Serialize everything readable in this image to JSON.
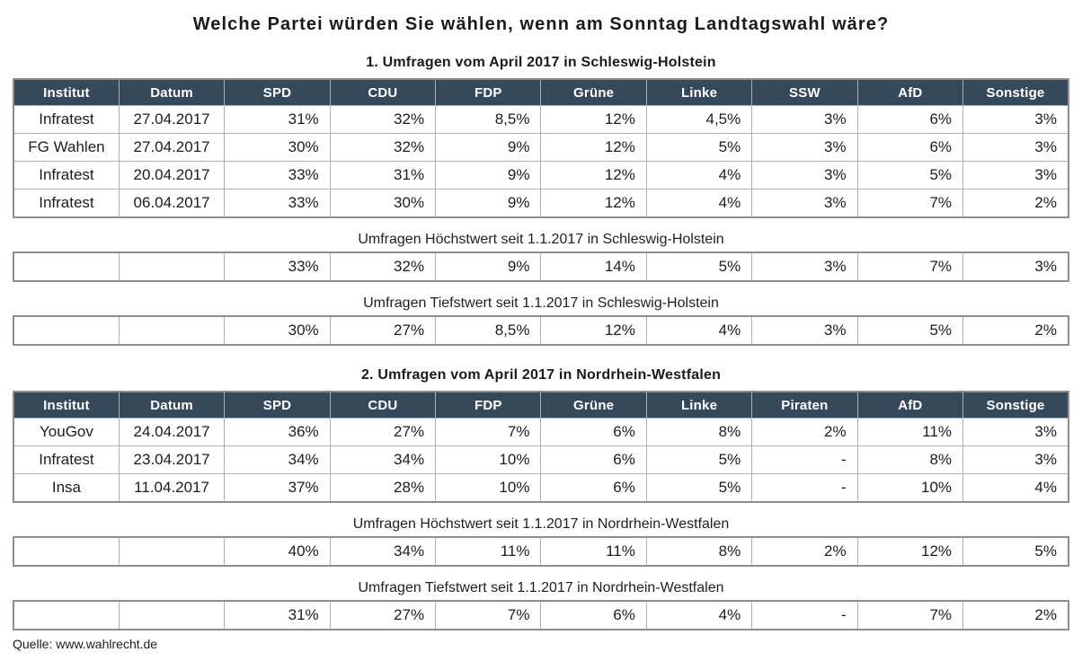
{
  "page": {
    "title": "Welche Partei würden Sie wählen, wenn am Sonntag Landtagswahl wäre?",
    "source": "Quelle: www.wahlrecht.de",
    "colors": {
      "header_bg": "#36495A",
      "header_text": "#ffffff",
      "body_text": "#1d1d1d",
      "grid_border": "#b0b0b0"
    }
  },
  "sections": [
    {
      "title": "1. Umfragen vom April 2017 in Schleswig-Holstein",
      "columns": [
        "Institut",
        "Datum",
        "SPD",
        "CDU",
        "FDP",
        "Grüne",
        "Linke",
        "SSW",
        "AfD",
        "Sonstige"
      ],
      "rows": [
        [
          "Infratest",
          "27.04.2017",
          "31%",
          "32%",
          "8,5%",
          "12%",
          "4,5%",
          "3%",
          "6%",
          "3%"
        ],
        [
          "FG Wahlen",
          "27.04.2017",
          "30%",
          "32%",
          "9%",
          "12%",
          "5%",
          "3%",
          "6%",
          "3%"
        ],
        [
          "Infratest",
          "20.04.2017",
          "33%",
          "31%",
          "9%",
          "12%",
          "4%",
          "3%",
          "5%",
          "3%"
        ],
        [
          "Infratest",
          "06.04.2017",
          "33%",
          "30%",
          "9%",
          "12%",
          "4%",
          "3%",
          "7%",
          "2%"
        ]
      ],
      "extras": [
        {
          "title": "Umfragen Höchstwert seit 1.1.2017 in Schleswig-Holstein",
          "row": [
            "",
            "",
            "33%",
            "32%",
            "9%",
            "14%",
            "5%",
            "3%",
            "7%",
            "3%"
          ]
        },
        {
          "title": "Umfragen Tiefstwert seit 1.1.2017 in Schleswig-Holstein",
          "row": [
            "",
            "",
            "30%",
            "27%",
            "8,5%",
            "12%",
            "4%",
            "3%",
            "5%",
            "2%"
          ]
        }
      ]
    },
    {
      "title": "2. Umfragen vom April 2017 in Nordrhein-Westfalen",
      "columns": [
        "Institut",
        "Datum",
        "SPD",
        "CDU",
        "FDP",
        "Grüne",
        "Linke",
        "Piraten",
        "AfD",
        "Sonstige"
      ],
      "rows": [
        [
          "YouGov",
          "24.04.2017",
          "36%",
          "27%",
          "7%",
          "6%",
          "8%",
          "2%",
          "11%",
          "3%"
        ],
        [
          "Infratest",
          "23.04.2017",
          "34%",
          "34%",
          "10%",
          "6%",
          "5%",
          "-",
          "8%",
          "3%"
        ],
        [
          "Insa",
          "11.04.2017",
          "37%",
          "28%",
          "10%",
          "6%",
          "5%",
          "-",
          "10%",
          "4%"
        ]
      ],
      "extras": [
        {
          "title": "Umfragen Höchstwert seit 1.1.2017 in Nordrhein-Westfalen",
          "row": [
            "",
            "",
            "40%",
            "34%",
            "11%",
            "11%",
            "8%",
            "2%",
            "12%",
            "5%"
          ]
        },
        {
          "title": "Umfragen Tiefstwert seit 1.1.2017 in Nordrhein-Westfalen",
          "row": [
            "",
            "",
            "31%",
            "27%",
            "7%",
            "6%",
            "4%",
            "-",
            "7%",
            "2%"
          ]
        }
      ]
    }
  ]
}
